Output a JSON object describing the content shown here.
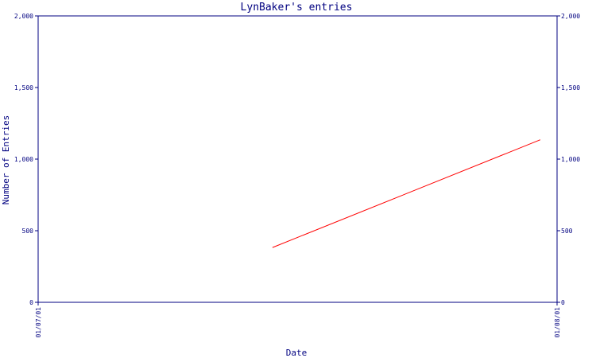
{
  "chart_data": {
    "type": "line",
    "title": "LynBaker's entries",
    "xlabel": "Date",
    "ylabel": "Number of Entries",
    "x_ticks": [
      "01/07/01",
      "01/08/01"
    ],
    "x_range": [
      "01/07/01",
      "01/08/01"
    ],
    "ylim": [
      0,
      2000
    ],
    "y_ticks": [
      {
        "value": 0,
        "label": "0"
      },
      {
        "value": 500,
        "label": "500"
      },
      {
        "value": 1000,
        "label": "1,000"
      },
      {
        "value": 1500,
        "label": "1,500"
      },
      {
        "value": 2000,
        "label": "2,000"
      }
    ],
    "grid": false,
    "right_axis_mirror": true,
    "series": [
      {
        "color": "#ff0000",
        "points": [
          {
            "x": "01/07/15",
            "y": 383
          },
          {
            "x": "01/07/31",
            "y": 1135
          }
        ]
      }
    ],
    "colors": {
      "axis": "#000080",
      "series": "#ff0000"
    }
  }
}
